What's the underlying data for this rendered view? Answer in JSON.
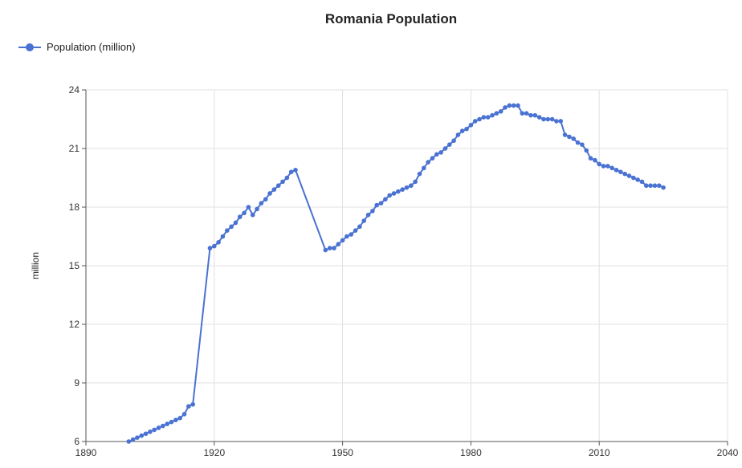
{
  "chart_data": {
    "type": "line",
    "title": "Romania Population",
    "xlabel": "",
    "ylabel": "million",
    "xlim": [
      1890,
      2040
    ],
    "ylim": [
      6,
      24
    ],
    "x_ticks": [
      1890,
      1920,
      1950,
      1980,
      2010,
      2040
    ],
    "y_ticks": [
      6,
      9,
      12,
      15,
      18,
      21,
      24
    ],
    "grid": true,
    "legend_position": "top-left",
    "series": [
      {
        "name": "Population (million)",
        "color": "#4a72d2",
        "points": [
          [
            1900,
            6.0
          ],
          [
            1901,
            6.1
          ],
          [
            1902,
            6.2
          ],
          [
            1903,
            6.3
          ],
          [
            1904,
            6.4
          ],
          [
            1905,
            6.5
          ],
          [
            1906,
            6.6
          ],
          [
            1907,
            6.7
          ],
          [
            1908,
            6.8
          ],
          [
            1909,
            6.9
          ],
          [
            1910,
            7.0
          ],
          [
            1911,
            7.1
          ],
          [
            1912,
            7.2
          ],
          [
            1913,
            7.4
          ],
          [
            1914,
            7.8
          ],
          [
            1915,
            7.9
          ],
          [
            1919,
            15.9
          ],
          [
            1920,
            16.0
          ],
          [
            1921,
            16.2
          ],
          [
            1922,
            16.5
          ],
          [
            1923,
            16.8
          ],
          [
            1924,
            17.0
          ],
          [
            1925,
            17.2
          ],
          [
            1926,
            17.5
          ],
          [
            1927,
            17.7
          ],
          [
            1928,
            18.0
          ],
          [
            1929,
            17.6
          ],
          [
            1930,
            17.9
          ],
          [
            1931,
            18.2
          ],
          [
            1932,
            18.4
          ],
          [
            1933,
            18.7
          ],
          [
            1934,
            18.9
          ],
          [
            1935,
            19.1
          ],
          [
            1936,
            19.3
          ],
          [
            1937,
            19.5
          ],
          [
            1938,
            19.8
          ],
          [
            1939,
            19.9
          ],
          [
            1946,
            15.8
          ],
          [
            1947,
            15.9
          ],
          [
            1948,
            15.9
          ],
          [
            1949,
            16.1
          ],
          [
            1950,
            16.3
          ],
          [
            1951,
            16.5
          ],
          [
            1952,
            16.6
          ],
          [
            1953,
            16.8
          ],
          [
            1954,
            17.0
          ],
          [
            1955,
            17.3
          ],
          [
            1956,
            17.6
          ],
          [
            1957,
            17.8
          ],
          [
            1958,
            18.1
          ],
          [
            1959,
            18.2
          ],
          [
            1960,
            18.4
          ],
          [
            1961,
            18.6
          ],
          [
            1962,
            18.7
          ],
          [
            1963,
            18.8
          ],
          [
            1964,
            18.9
          ],
          [
            1965,
            19.0
          ],
          [
            1966,
            19.1
          ],
          [
            1967,
            19.3
          ],
          [
            1968,
            19.7
          ],
          [
            1969,
            20.0
          ],
          [
            1970,
            20.3
          ],
          [
            1971,
            20.5
          ],
          [
            1972,
            20.7
          ],
          [
            1973,
            20.8
          ],
          [
            1974,
            21.0
          ],
          [
            1975,
            21.2
          ],
          [
            1976,
            21.4
          ],
          [
            1977,
            21.7
          ],
          [
            1978,
            21.9
          ],
          [
            1979,
            22.0
          ],
          [
            1980,
            22.2
          ],
          [
            1981,
            22.4
          ],
          [
            1982,
            22.5
          ],
          [
            1983,
            22.6
          ],
          [
            1984,
            22.6
          ],
          [
            1985,
            22.7
          ],
          [
            1986,
            22.8
          ],
          [
            1987,
            22.9
          ],
          [
            1988,
            23.1
          ],
          [
            1989,
            23.2
          ],
          [
            1990,
            23.2
          ],
          [
            1991,
            23.2
          ],
          [
            1992,
            22.8
          ],
          [
            1993,
            22.8
          ],
          [
            1994,
            22.7
          ],
          [
            1995,
            22.7
          ],
          [
            1996,
            22.6
          ],
          [
            1997,
            22.5
          ],
          [
            1998,
            22.5
          ],
          [
            1999,
            22.5
          ],
          [
            2000,
            22.4
          ],
          [
            2001,
            22.4
          ],
          [
            2002,
            21.7
          ],
          [
            2003,
            21.6
          ],
          [
            2004,
            21.5
          ],
          [
            2005,
            21.3
          ],
          [
            2006,
            21.2
          ],
          [
            2007,
            20.9
          ],
          [
            2008,
            20.5
          ],
          [
            2009,
            20.4
          ],
          [
            2010,
            20.2
          ],
          [
            2011,
            20.1
          ],
          [
            2012,
            20.1
          ],
          [
            2013,
            20.0
          ],
          [
            2014,
            19.9
          ],
          [
            2015,
            19.8
          ],
          [
            2016,
            19.7
          ],
          [
            2017,
            19.6
          ],
          [
            2018,
            19.5
          ],
          [
            2019,
            19.4
          ],
          [
            2020,
            19.3
          ],
          [
            2021,
            19.1
          ],
          [
            2022,
            19.1
          ],
          [
            2023,
            19.1
          ],
          [
            2024,
            19.1
          ],
          [
            2025,
            19.0
          ]
        ]
      }
    ]
  }
}
